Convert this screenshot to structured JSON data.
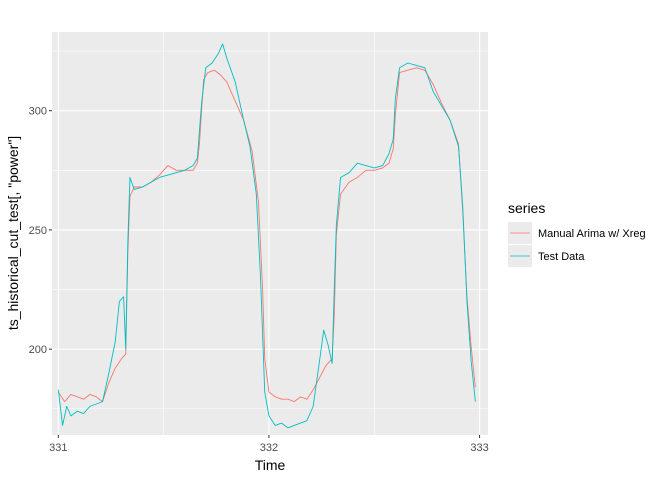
{
  "chart_data": {
    "type": "line",
    "title": "",
    "xlabel": "Time",
    "ylabel": "ts_historical_cut_test[, \"power\"]",
    "xlim": [
      330.97,
      333.04
    ],
    "ylim": [
      164,
      333
    ],
    "x_ticks": [
      331,
      332,
      333
    ],
    "x_tick_labels": [
      "331",
      "332",
      "333"
    ],
    "y_ticks": [
      200,
      250,
      300
    ],
    "y_tick_labels": [
      "200",
      "250",
      "300"
    ],
    "grid": true,
    "background": "#ebebeb",
    "legend": {
      "title": "series",
      "position": "right"
    },
    "series": [
      {
        "name": "Manual Arima w/ Xreg",
        "color": "#F8766D",
        "points": [
          [
            331.0,
            182
          ],
          [
            331.03,
            178
          ],
          [
            331.06,
            181
          ],
          [
            331.09,
            180
          ],
          [
            331.12,
            179
          ],
          [
            331.15,
            181
          ],
          [
            331.18,
            180
          ],
          [
            331.21,
            178
          ],
          [
            331.24,
            186
          ],
          [
            331.27,
            192
          ],
          [
            331.3,
            196
          ],
          [
            331.32,
            198
          ],
          [
            331.33,
            240
          ],
          [
            331.34,
            264
          ],
          [
            331.36,
            268
          ],
          [
            331.4,
            268
          ],
          [
            331.44,
            270
          ],
          [
            331.48,
            273
          ],
          [
            331.52,
            277
          ],
          [
            331.56,
            275
          ],
          [
            331.6,
            275
          ],
          [
            331.64,
            275
          ],
          [
            331.66,
            278
          ],
          [
            331.67,
            286
          ],
          [
            331.68,
            300
          ],
          [
            331.69,
            313
          ],
          [
            331.71,
            316
          ],
          [
            331.74,
            317
          ],
          [
            331.77,
            315
          ],
          [
            331.8,
            312
          ],
          [
            331.84,
            304
          ],
          [
            331.88,
            296
          ],
          [
            331.92,
            283
          ],
          [
            331.95,
            262
          ],
          [
            331.97,
            225
          ],
          [
            331.98,
            196
          ],
          [
            332.0,
            182
          ],
          [
            332.03,
            180
          ],
          [
            332.06,
            179
          ],
          [
            332.09,
            179
          ],
          [
            332.12,
            178
          ],
          [
            332.15,
            180
          ],
          [
            332.18,
            179
          ],
          [
            332.21,
            183
          ],
          [
            332.24,
            188
          ],
          [
            332.27,
            193
          ],
          [
            332.3,
            196
          ],
          [
            332.31,
            214
          ],
          [
            332.32,
            248
          ],
          [
            332.34,
            265
          ],
          [
            332.38,
            270
          ],
          [
            332.42,
            272
          ],
          [
            332.46,
            275
          ],
          [
            332.5,
            275
          ],
          [
            332.54,
            276
          ],
          [
            332.57,
            278
          ],
          [
            332.59,
            284
          ],
          [
            332.6,
            298
          ],
          [
            332.62,
            316
          ],
          [
            332.66,
            317
          ],
          [
            332.7,
            318
          ],
          [
            332.74,
            317
          ],
          [
            332.78,
            311
          ],
          [
            332.82,
            303
          ],
          [
            332.86,
            296
          ],
          [
            332.9,
            286
          ],
          [
            332.92,
            258
          ],
          [
            332.94,
            222
          ],
          [
            332.96,
            201
          ],
          [
            332.98,
            184
          ]
        ]
      },
      {
        "name": "Test Data",
        "color": "#00BFC4",
        "points": [
          [
            331.0,
            183
          ],
          [
            331.02,
            168
          ],
          [
            331.04,
            176
          ],
          [
            331.06,
            172
          ],
          [
            331.09,
            174
          ],
          [
            331.12,
            173
          ],
          [
            331.15,
            176
          ],
          [
            331.18,
            177
          ],
          [
            331.21,
            178
          ],
          [
            331.24,
            190
          ],
          [
            331.27,
            203
          ],
          [
            331.29,
            220
          ],
          [
            331.31,
            222
          ],
          [
            331.32,
            200
          ],
          [
            331.33,
            245
          ],
          [
            331.34,
            272
          ],
          [
            331.36,
            267
          ],
          [
            331.4,
            268
          ],
          [
            331.44,
            270
          ],
          [
            331.48,
            272
          ],
          [
            331.52,
            273
          ],
          [
            331.56,
            274
          ],
          [
            331.6,
            275
          ],
          [
            331.64,
            277
          ],
          [
            331.66,
            280
          ],
          [
            331.68,
            303
          ],
          [
            331.7,
            318
          ],
          [
            331.73,
            320
          ],
          [
            331.76,
            324
          ],
          [
            331.78,
            328
          ],
          [
            331.8,
            322
          ],
          [
            331.84,
            312
          ],
          [
            331.88,
            296
          ],
          [
            331.91,
            285
          ],
          [
            331.94,
            265
          ],
          [
            331.96,
            230
          ],
          [
            331.98,
            182
          ],
          [
            332.0,
            172
          ],
          [
            332.03,
            168
          ],
          [
            332.06,
            169
          ],
          [
            332.09,
            167
          ],
          [
            332.12,
            168
          ],
          [
            332.15,
            169
          ],
          [
            332.18,
            170
          ],
          [
            332.21,
            176
          ],
          [
            332.24,
            195
          ],
          [
            332.26,
            208
          ],
          [
            332.28,
            202
          ],
          [
            332.3,
            194
          ],
          [
            332.31,
            225
          ],
          [
            332.32,
            252
          ],
          [
            332.34,
            272
          ],
          [
            332.38,
            274
          ],
          [
            332.42,
            278
          ],
          [
            332.46,
            277
          ],
          [
            332.5,
            276
          ],
          [
            332.54,
            277
          ],
          [
            332.57,
            282
          ],
          [
            332.59,
            288
          ],
          [
            332.6,
            305
          ],
          [
            332.62,
            318
          ],
          [
            332.66,
            320
          ],
          [
            332.7,
            319
          ],
          [
            332.74,
            318
          ],
          [
            332.78,
            308
          ],
          [
            332.82,
            302
          ],
          [
            332.86,
            296
          ],
          [
            332.9,
            285
          ],
          [
            332.92,
            260
          ],
          [
            332.94,
            220
          ],
          [
            332.96,
            195
          ],
          [
            332.98,
            178
          ]
        ]
      }
    ]
  }
}
